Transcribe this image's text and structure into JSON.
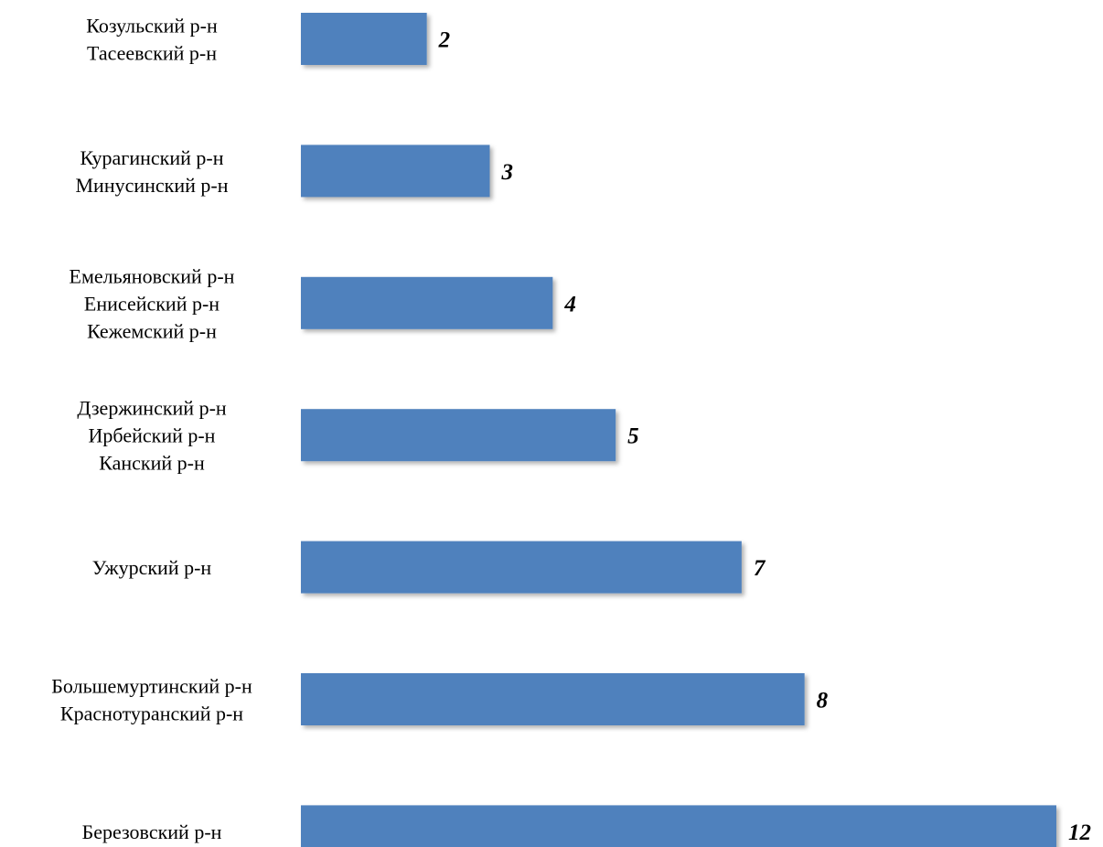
{
  "chart_data": {
    "type": "bar",
    "orientation": "horizontal",
    "categories": [
      [
        "Козульский р-н",
        "Тасеевский р-н"
      ],
      [
        "Курагинский р-н",
        "Минусинский р-н"
      ],
      [
        "Емельяновский р-н",
        "Енисейский р-н",
        "Кежемский р-н"
      ],
      [
        "Дзержинский р-н",
        "Ирбейский р-н",
        "Канский р-н"
      ],
      [
        "Ужурский р-н"
      ],
      [
        "Большемуртинский р-н",
        "Краснотуранский р-н"
      ],
      [
        "Березовский р-н"
      ]
    ],
    "values": [
      2,
      3,
      4,
      5,
      7,
      8,
      12
    ],
    "value_labels": [
      "2",
      "3",
      "4",
      "5",
      "7",
      "8",
      "12"
    ],
    "title": "",
    "xlabel": "",
    "ylabel": "",
    "xlim": [
      0,
      12
    ],
    "grid": false,
    "legend": "none",
    "data_labels": true,
    "colors": {
      "bar": "#4f81bd",
      "text": "#000000",
      "shadow": "#bfbfbf"
    }
  }
}
